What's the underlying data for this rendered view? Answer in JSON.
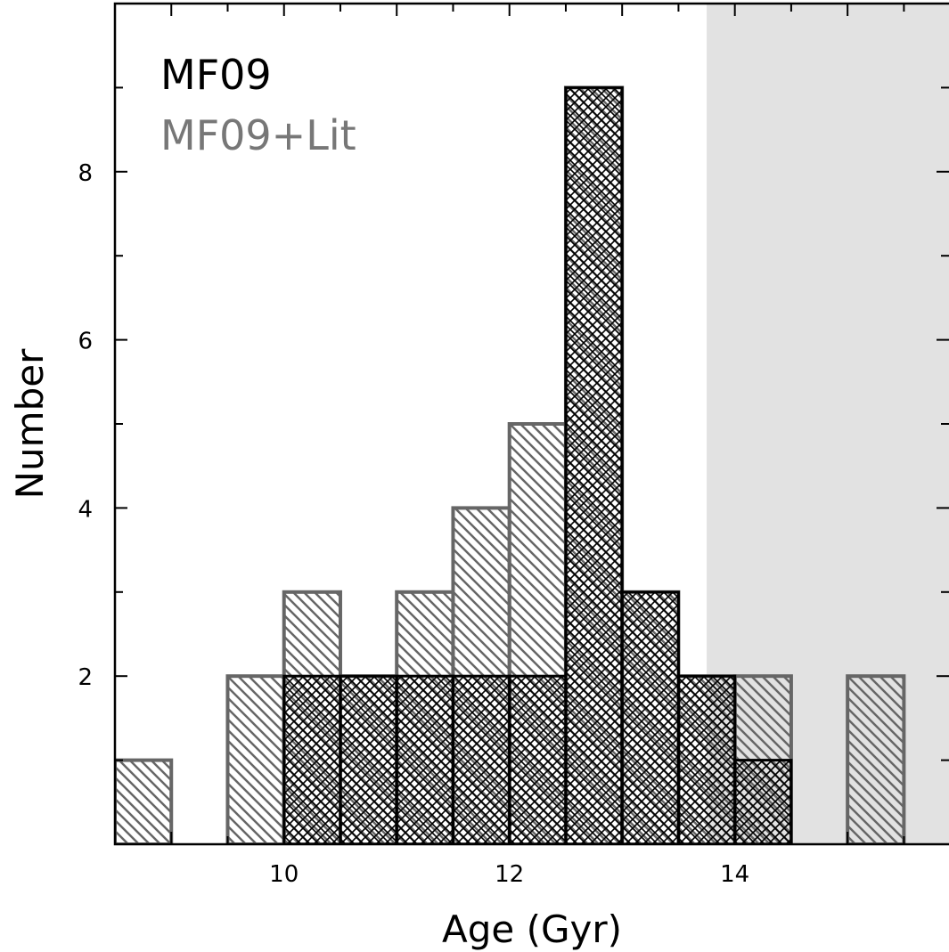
{
  "chart_data": {
    "type": "bar",
    "xlabel": "Age (Gyr)",
    "ylabel": "Number",
    "xlim": [
      8.5,
      15.9
    ],
    "ylim": [
      0,
      10
    ],
    "x_ticks": [
      10,
      12,
      14
    ],
    "y_ticks": [
      2,
      4,
      6,
      8
    ],
    "shaded_region": {
      "x": [
        13.75,
        15.9
      ],
      "color": "#e2e2e2"
    },
    "bin_width": 0.5,
    "series": [
      {
        "name": "MF09+Lit",
        "color": "#666666",
        "hatch": "single",
        "bins": [
          {
            "x0": 8.5,
            "count": 1
          },
          {
            "x0": 9.0,
            "count": 0
          },
          {
            "x0": 9.5,
            "count": 2
          },
          {
            "x0": 10.0,
            "count": 3
          },
          {
            "x0": 10.5,
            "count": 2
          },
          {
            "x0": 11.0,
            "count": 3
          },
          {
            "x0": 11.5,
            "count": 4
          },
          {
            "x0": 12.0,
            "count": 5
          },
          {
            "x0": 12.5,
            "count": 9
          },
          {
            "x0": 13.0,
            "count": 3
          },
          {
            "x0": 13.5,
            "count": 2
          },
          {
            "x0": 14.0,
            "count": 2
          },
          {
            "x0": 14.5,
            "count": 0
          },
          {
            "x0": 15.0,
            "count": 2
          }
        ]
      },
      {
        "name": "MF09",
        "color": "#000000",
        "hatch": "cross",
        "bins": [
          {
            "x0": 10.0,
            "count": 2
          },
          {
            "x0": 10.5,
            "count": 2
          },
          {
            "x0": 11.0,
            "count": 2
          },
          {
            "x0": 11.5,
            "count": 2
          },
          {
            "x0": 12.0,
            "count": 2
          },
          {
            "x0": 12.5,
            "count": 9
          },
          {
            "x0": 13.0,
            "count": 3
          },
          {
            "x0": 13.5,
            "count": 2
          },
          {
            "x0": 14.0,
            "count": 1
          }
        ]
      }
    ],
    "legend": [
      "MF09",
      "MF09+Lit"
    ],
    "legend_position": "top-left",
    "grid": false
  }
}
